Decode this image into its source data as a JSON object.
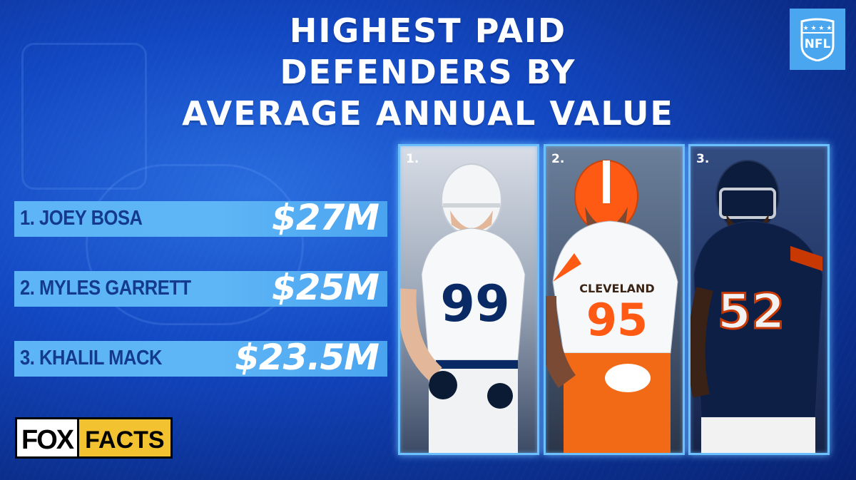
{
  "title": {
    "line1": "HIGHEST PAID",
    "line2": "DEFENDERS BY",
    "line3": "AVERAGE ANNUAL VALUE"
  },
  "logo": {
    "text": "NFL",
    "color": "#4aa6ee"
  },
  "rankings": [
    {
      "name": "1. JOEY BOSA",
      "value": "$27M"
    },
    {
      "name": "2. MYLES GARRETT",
      "value": "$25M"
    },
    {
      "name": "3. KHALIL MACK",
      "value": "$23.5M"
    }
  ],
  "photos": [
    {
      "label": "1.",
      "jersey_number": "99",
      "team_colors": [
        "#ffffff",
        "#0a2a66"
      ]
    },
    {
      "label": "2.",
      "jersey_number": "95",
      "team_colors": [
        "#ffffff",
        "#ff5a14"
      ]
    },
    {
      "label": "3.",
      "jersey_number": "52",
      "team_colors": [
        "#0b1c3d",
        "#c83803"
      ]
    }
  ],
  "brand": {
    "fox": "FOX",
    "facts": "FACTS",
    "facts_color": "#f2c230"
  },
  "colors": {
    "background": "#1247c2",
    "bar": "#5eb6f6",
    "bar_text": "#143a8f",
    "frame_glow": "#6dc0ff"
  }
}
